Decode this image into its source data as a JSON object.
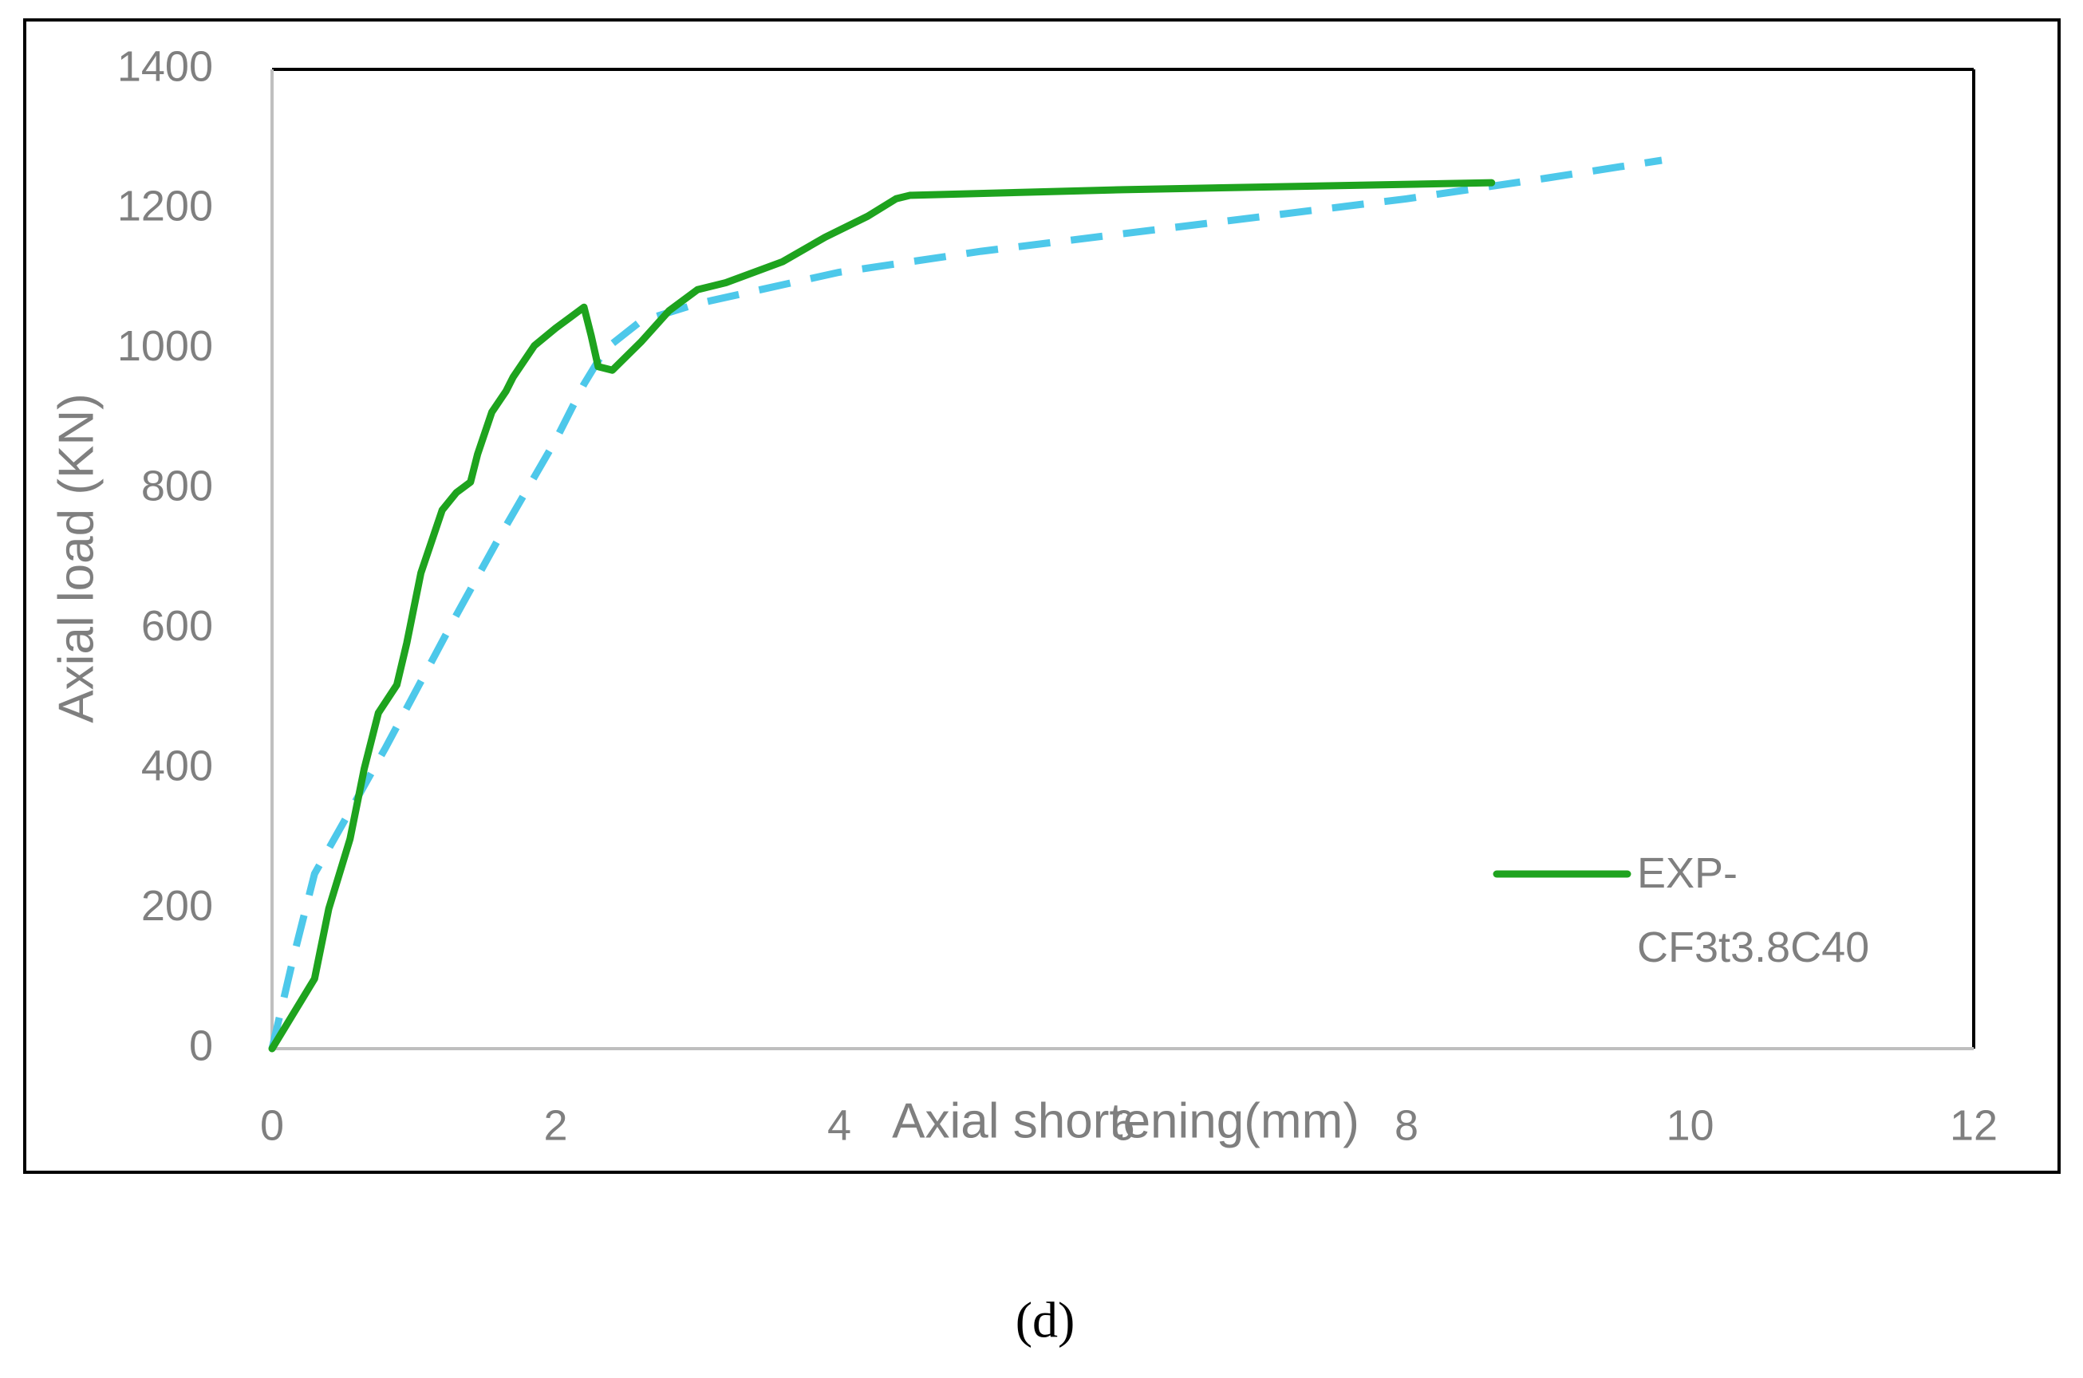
{
  "caption": "(d)",
  "chart_data": {
    "type": "line",
    "x_label": "Axial shortening(mm)",
    "y_label": "Axial load (KN)",
    "xlim": [
      0,
      12
    ],
    "xticks": [
      0,
      2,
      4,
      6,
      8,
      10,
      12
    ],
    "ylim": [
      0,
      1400
    ],
    "yticks": [
      0,
      200,
      400,
      600,
      800,
      1000,
      1200,
      1400
    ],
    "series": [
      {
        "name": "EXP-CF3t3.8C40",
        "color": "#1ea31e",
        "line_style": "solid",
        "x": [
          0,
          0.3,
          0.4,
          0.55,
          0.65,
          0.75,
          0.88,
          0.95,
          1.05,
          1.2,
          1.3,
          1.4,
          1.45,
          1.55,
          1.65,
          1.7,
          1.85,
          2.0,
          2.1,
          2.2,
          2.25,
          2.3,
          2.4,
          2.6,
          2.8,
          3.0,
          3.2,
          3.6,
          3.9,
          4.2,
          4.4,
          4.5,
          6.0,
          8.6
        ],
        "values": [
          0,
          100,
          200,
          300,
          400,
          480,
          520,
          580,
          680,
          770,
          795,
          810,
          850,
          910,
          940,
          960,
          1005,
          1030,
          1045,
          1060,
          1020,
          975,
          970,
          1010,
          1055,
          1085,
          1095,
          1125,
          1160,
          1190,
          1215,
          1220,
          1228,
          1238
        ]
      },
      {
        "color": "#4dc8ea",
        "line_style": "dashed",
        "x": [
          0,
          0.15,
          0.3,
          0.55,
          0.8,
          1.3,
          1.6,
          2.0,
          2.2,
          2.35,
          2.6,
          3.0,
          4.0,
          5.0,
          6.0,
          7.0,
          8.0,
          9.0,
          9.8
        ],
        "values": [
          0,
          130,
          250,
          340,
          430,
          620,
          730,
          870,
          950,
          1000,
          1040,
          1065,
          1110,
          1140,
          1165,
          1190,
          1215,
          1245,
          1270
        ]
      }
    ]
  }
}
